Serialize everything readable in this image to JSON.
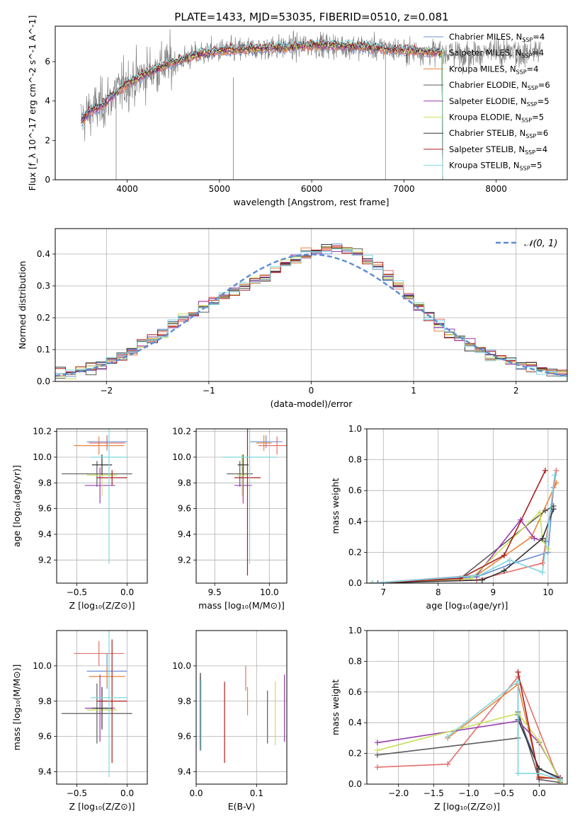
{
  "figure": {
    "title": "PLATE=1433, MJD=53035, FIBERID=0510, z=0.081"
  },
  "colors": {
    "data": "#808080",
    "models": [
      "#6b8fd6",
      "#e2716b",
      "#e8833a",
      "#5c5c5c",
      "#9a3cb0",
      "#c8e05a",
      "#333333",
      "#aa1e1e",
      "#7fd8de"
    ],
    "normal": "#5b8bd3",
    "grid": "#b0b0b0"
  },
  "chart_data": [
    {
      "id": "spectrum",
      "type": "line",
      "xlabel": "wavelength [Angstrom, rest frame]",
      "ylabel": "Flux [f_λ 10^-17 erg cm^-2 s^-1 A^-1]",
      "xlim": [
        3220,
        8770
      ],
      "ylim": [
        0,
        7.8
      ],
      "xticks": [
        4000,
        5000,
        6000,
        7000,
        8000
      ],
      "yticks": [
        0,
        2,
        4,
        6
      ],
      "grid": false,
      "legend_position": "right",
      "legend": [
        {
          "base": "Chabrier MILES, N",
          "sub": "SSP",
          "tail": "=4"
        },
        {
          "base": "Salpeter MILES, N",
          "sub": "SSP",
          "tail": "=4"
        },
        {
          "base": "Kroupa MILES, N",
          "sub": "SSP",
          "tail": "=4"
        },
        {
          "base": "Chabrier ELODIE, N",
          "sub": "SSP",
          "tail": "=6"
        },
        {
          "base": "Salpeter ELODIE, N",
          "sub": "SSP",
          "tail": "=5"
        },
        {
          "base": "Kroupa ELODIE, N",
          "sub": "SSP",
          "tail": "=5"
        },
        {
          "base": "Chabrier STELIB, N",
          "sub": "SSP",
          "tail": "=6"
        },
        {
          "base": "Salpeter STELIB, N",
          "sub": "SSP",
          "tail": "=4"
        },
        {
          "base": "Kroupa STELIB, N",
          "sub": "SSP",
          "tail": "=5"
        }
      ],
      "continuum": {
        "x": [
          3500,
          3600,
          3700,
          3800,
          3900,
          4000,
          4100,
          4200,
          4300,
          4400,
          4600,
          4800,
          5000,
          5200,
          5500,
          5800,
          6000,
          6300,
          6600,
          6900,
          7200,
          7400
        ],
        "y": [
          3.0,
          3.5,
          3.7,
          4.1,
          4.5,
          4.9,
          5.1,
          5.4,
          5.6,
          5.8,
          6.1,
          6.4,
          6.55,
          6.6,
          6.7,
          6.75,
          6.85,
          6.8,
          6.75,
          6.6,
          6.5,
          6.45
        ]
      },
      "model_ranges": [
        [
          3500,
          7420
        ],
        [
          3500,
          7420
        ],
        [
          3500,
          7420
        ],
        [
          3500,
          7420
        ],
        [
          3500,
          7420
        ],
        [
          3880,
          7420
        ],
        [
          3500,
          7420
        ],
        [
          3500,
          7420
        ],
        [
          3500,
          7420
        ]
      ]
    },
    {
      "id": "residual_histogram",
      "type": "line",
      "xlabel": "(data-model)/error",
      "ylabel": "Normed distribution",
      "xlim": [
        -2.5,
        2.5
      ],
      "ylim": [
        0,
        0.48
      ],
      "xticks": [
        -2,
        -1,
        0,
        1,
        2
      ],
      "yticks": [
        0.0,
        0.1,
        0.2,
        0.3,
        0.4
      ],
      "grid": true,
      "legend_position": "top-right",
      "legend_label": "𝒩(0, 1)",
      "bin_width": 0.1
    },
    {
      "id": "age_vs_Z",
      "type": "scatter",
      "xlabel": "Z [log₁₀(Z/Z⊙)]",
      "ylabel": "age  [log₁₀(age/yr)]",
      "xlim": [
        -0.7,
        0.2
      ],
      "ylim": [
        9.02,
        10.22
      ],
      "xticks": [
        -0.5,
        0.0
      ],
      "yticks": [
        9.2,
        9.4,
        9.6,
        9.8,
        10.0,
        10.2
      ],
      "grid": true,
      "points": [
        {
          "x": -0.2,
          "y": 10.12,
          "xerr": 0.2,
          "yerr": 0.05
        },
        {
          "x": -0.2,
          "y": 10.11,
          "xerr": 0.18,
          "yerr": 0.06
        },
        {
          "x": -0.28,
          "y": 10.09,
          "xerr": 0.25,
          "yerr": 0.07
        },
        {
          "x": -0.3,
          "y": 9.87,
          "xerr": 0.35,
          "yerr": 0.1
        },
        {
          "x": -0.27,
          "y": 9.78,
          "xerr": 0.15,
          "yerr": 0.14
        },
        {
          "x": -0.25,
          "y": 9.86,
          "xerr": 0.15,
          "yerr": 0.16
        },
        {
          "x": -0.25,
          "y": 9.94,
          "xerr": 0.1,
          "yerr": 0.08
        },
        {
          "x": -0.15,
          "y": 9.84,
          "xerr": 0.15,
          "yerr": 0.06
        },
        {
          "x": -0.18,
          "y": 10.0,
          "xerr": 0.18,
          "yerr": 0.83
        }
      ]
    },
    {
      "id": "age_vs_mass",
      "type": "scatter",
      "xlabel": "mass [log₁₀(M/M⊙)]",
      "ylabel": "",
      "xlim": [
        9.33,
        10.16
      ],
      "ylim": [
        9.02,
        10.22
      ],
      "xticks": [
        9.5,
        10.0
      ],
      "yticks": [
        9.2,
        9.4,
        9.6,
        9.8,
        10.0,
        10.2
      ],
      "grid": true,
      "points": [
        {
          "x": 9.97,
          "y": 10.12,
          "xerr": 0.15,
          "yerr": 0.05
        },
        {
          "x": 10.07,
          "y": 10.09,
          "xerr": 0.17,
          "yerr": 0.07
        },
        {
          "x": 9.95,
          "y": 10.11,
          "xerr": 0.07,
          "yerr": 0.06
        },
        {
          "x": 9.73,
          "y": 9.87,
          "xerr": 0.12,
          "yerr": 0.1
        },
        {
          "x": 9.76,
          "y": 9.78,
          "xerr": 0.08,
          "yerr": 0.14
        },
        {
          "x": 9.75,
          "y": 9.86,
          "xerr": 0.04,
          "yerr": 0.16
        },
        {
          "x": 9.76,
          "y": 9.94,
          "xerr": 0.05,
          "yerr": 0.08
        },
        {
          "x": 9.8,
          "y": 9.84,
          "xerr": 0.12,
          "yerr": 0.76
        },
        {
          "x": 9.82,
          "y": 10.0,
          "xerr": 0.25,
          "yerr": 0.83
        }
      ]
    },
    {
      "id": "mass_weight_vs_age",
      "type": "line",
      "xlabel": "age  [log₁₀(age/yr)]",
      "ylabel": "mass weight",
      "xlim": [
        6.7,
        10.35
      ],
      "ylim": [
        0,
        1.0
      ],
      "xticks": [
        7,
        8,
        9,
        10
      ],
      "yticks": [
        0.0,
        0.2,
        0.4,
        0.6,
        0.8,
        1.0
      ],
      "grid": true,
      "series": [
        {
          "x": [
            6.8,
            8.7,
            9.3,
            10.0,
            10.1
          ],
          "y": [
            0.0,
            0.04,
            0.12,
            0.2,
            0.62
          ]
        },
        {
          "x": [
            6.8,
            8.7,
            9.9,
            10.15
          ],
          "y": [
            0.0,
            0.02,
            0.13,
            0.73
          ]
        },
        {
          "x": [
            6.8,
            8.7,
            9.7,
            10.15
          ],
          "y": [
            0.0,
            0.05,
            0.3,
            0.65
          ]
        },
        {
          "x": [
            6.9,
            8.4,
            9.95,
            10.1
          ],
          "y": [
            0.0,
            0.03,
            0.47,
            0.5
          ]
        },
        {
          "x": [
            6.8,
            8.7,
            9.5,
            9.75,
            9.95
          ],
          "y": [
            0.0,
            0.05,
            0.41,
            0.29,
            0.27
          ]
        },
        {
          "x": [
            6.8,
            8.6,
            9.85,
            9.9,
            10.0
          ],
          "y": [
            0.0,
            0.03,
            0.46,
            0.28,
            0.22
          ]
        },
        {
          "x": [
            6.8,
            8.8,
            9.2,
            9.9,
            10.1
          ],
          "y": [
            0.0,
            0.02,
            0.08,
            0.29,
            0.48
          ]
        },
        {
          "x": [
            6.8,
            8.4,
            9.2,
            9.95
          ],
          "y": [
            0.0,
            0.03,
            0.18,
            0.73
          ]
        },
        {
          "x": [
            6.8,
            8.75,
            9.3,
            9.9,
            10.12
          ],
          "y": [
            0.0,
            0.05,
            0.15,
            0.07,
            0.7
          ]
        }
      ]
    },
    {
      "id": "mass_vs_Z",
      "type": "scatter",
      "xlabel": "Z [log₁₀(Z/Z⊙)]",
      "ylabel": "mass [log₁₀(M/M⊙)]",
      "xlim": [
        -0.7,
        0.2
      ],
      "ylim": [
        9.33,
        10.2
      ],
      "xticks": [
        -0.5,
        0.0
      ],
      "yticks": [
        9.4,
        9.6,
        9.8,
        10.0
      ],
      "grid": true,
      "points": [
        {
          "x": -0.2,
          "y": 9.97,
          "xerr": 0.2,
          "yerr": 0.1
        },
        {
          "x": -0.28,
          "y": 10.07,
          "xerr": 0.25,
          "yerr": 0.07
        },
        {
          "x": -0.2,
          "y": 9.94,
          "xerr": 0.18,
          "yerr": 0.06
        },
        {
          "x": -0.3,
          "y": 9.73,
          "xerr": 0.35,
          "yerr": 0.17
        },
        {
          "x": -0.27,
          "y": 9.76,
          "xerr": 0.15,
          "yerr": 0.19
        },
        {
          "x": -0.25,
          "y": 9.75,
          "xerr": 0.15,
          "yerr": 0.08
        },
        {
          "x": -0.25,
          "y": 9.76,
          "xerr": 0.1,
          "yerr": 0.12
        },
        {
          "x": -0.15,
          "y": 9.8,
          "xerr": 0.15,
          "yerr": 0.35
        },
        {
          "x": -0.18,
          "y": 9.82,
          "xerr": 0.18,
          "yerr": 0.45
        }
      ]
    },
    {
      "id": "mass_vs_ebv",
      "type": "scatter",
      "xlabel": "E(B-V)",
      "ylabel": "",
      "xlim": [
        0.0,
        0.15
      ],
      "ylim": [
        9.33,
        10.2
      ],
      "xticks": [
        0.0,
        0.1
      ],
      "yticks": [
        9.4,
        9.6,
        9.8,
        10.0
      ],
      "grid": true,
      "points": [
        {
          "x": 0.007,
          "y": 9.74,
          "yerr": 0.2
        },
        {
          "x": 0.082,
          "y": 9.93,
          "yerr": 0.07
        },
        {
          "x": 0.085,
          "y": 9.8,
          "yerr": 0.08
        },
        {
          "x": 0.118,
          "y": 9.71,
          "yerr": 0.15
        },
        {
          "x": 0.146,
          "y": 9.76,
          "yerr": 0.19
        },
        {
          "x": 0.131,
          "y": 9.73,
          "yerr": 0.18
        },
        {
          "x": 0.007,
          "y": 9.74,
          "yerr": 0.22
        },
        {
          "x": 0.047,
          "y": 9.68,
          "yerr": 0.23
        },
        {
          "x": 0.008,
          "y": 9.72,
          "yerr": 0.2
        }
      ]
    },
    {
      "id": "mass_weight_vs_Z",
      "type": "line",
      "xlabel": "Z [log₁₀(Z/Z⊙)]",
      "ylabel": "mass weight",
      "xlim": [
        -2.45,
        0.4
      ],
      "ylim": [
        0,
        1.0
      ],
      "xticks": [
        -2.0,
        -1.5,
        -1.0,
        -0.5,
        0.0
      ],
      "yticks": [
        0.0,
        0.2,
        0.4,
        0.6,
        0.8,
        1.0
      ],
      "grid": true,
      "series": [
        {
          "x": [
            -0.3,
            -0.3,
            0.0,
            0.3
          ],
          "y": [
            0.65,
            0.45,
            0.1,
            0.03
          ]
        },
        {
          "x": [
            -2.3,
            -1.3,
            -0.3,
            0.3
          ],
          "y": [
            0.11,
            0.13,
            0.7,
            0.0
          ]
        },
        {
          "x": [
            -1.3,
            -0.3,
            0.0,
            0.3
          ],
          "y": [
            0.3,
            0.65,
            0.05,
            0.03
          ]
        },
        {
          "x": [
            -2.3,
            -0.3,
            -0.3,
            0.0,
            0.3
          ],
          "y": [
            0.19,
            0.3,
            0.47,
            0.03,
            0.01
          ]
        },
        {
          "x": [
            -2.3,
            -0.3,
            0.0,
            0.3
          ],
          "y": [
            0.27,
            0.41,
            0.27,
            0.03
          ]
        },
        {
          "x": [
            -2.3,
            -0.3,
            0.0,
            0.3
          ],
          "y": [
            0.22,
            0.46,
            0.28,
            0.02
          ]
        },
        {
          "x": [
            -0.3,
            0.0,
            0.3
          ],
          "y": [
            0.42,
            0.1,
            0.04
          ]
        },
        {
          "x": [
            -0.3,
            0.0,
            0.3
          ],
          "y": [
            0.73,
            0.04,
            0.04
          ]
        },
        {
          "x": [
            -1.3,
            -0.3,
            -0.3,
            0.0,
            0.3
          ],
          "y": [
            0.31,
            0.67,
            0.07,
            0.07,
            0.03
          ]
        }
      ]
    }
  ]
}
